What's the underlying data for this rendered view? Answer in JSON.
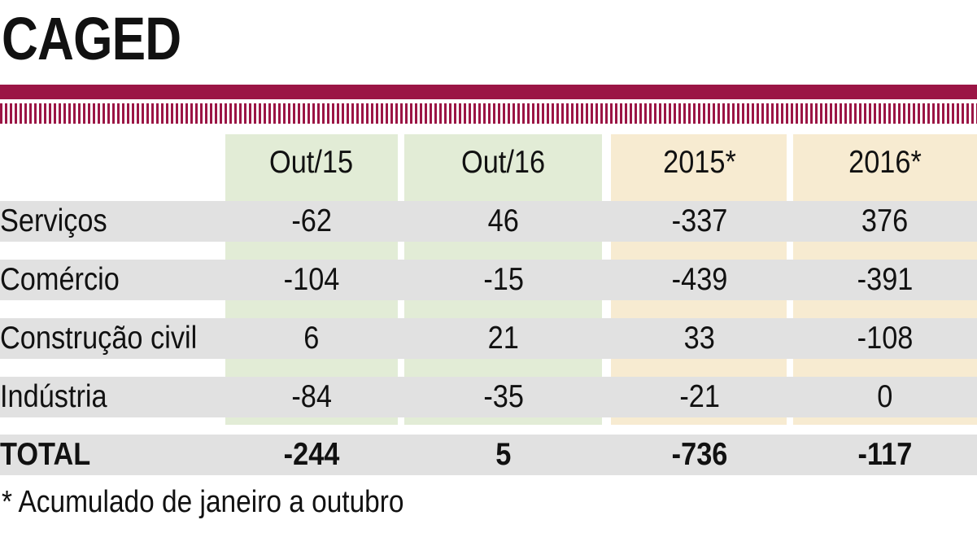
{
  "title": "CAGED",
  "colors": {
    "accent": "#9b1545",
    "month_col": "#e2ecd6",
    "year_col": "#f7ebd1",
    "row_band": "#e1e1e1"
  },
  "chart_data": {
    "type": "table",
    "columns": [
      "Out/15",
      "Out/16",
      "2015*",
      "2016*"
    ],
    "rows": [
      {
        "label": "Serviços",
        "values": [
          "-62",
          "46",
          "-337",
          "376"
        ]
      },
      {
        "label": "Comércio",
        "values": [
          "-104",
          "-15",
          "-439",
          "-391"
        ]
      },
      {
        "label": "Construção civil",
        "values": [
          "6",
          "21",
          "33",
          "-108"
        ]
      },
      {
        "label": "Indústria",
        "values": [
          "-84",
          "-35",
          "-21",
          "0"
        ]
      }
    ],
    "total": {
      "label": "TOTAL",
      "values": [
        "-244",
        "5",
        "-736",
        "-117"
      ]
    }
  },
  "footnote": "* Acumulado de janeiro a outubro"
}
